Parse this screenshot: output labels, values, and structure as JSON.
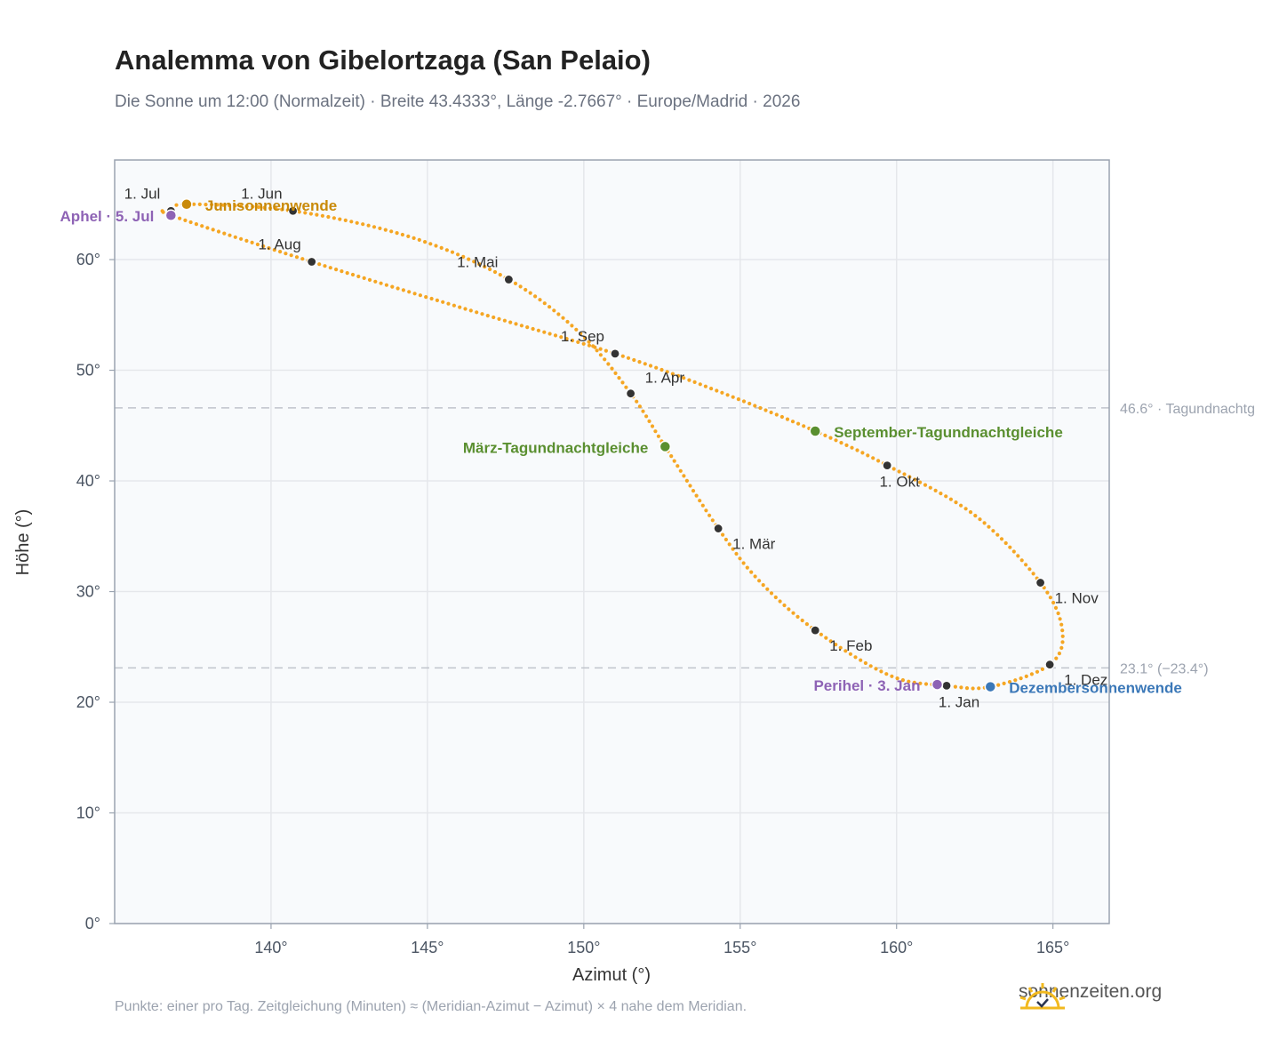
{
  "title": "Analemma von Gibelortzaga (San Pelaio)",
  "subtitle": "Die Sonne um 12:00 (Normalzeit) · Breite 43.4333°, Länge -2.7667° · Europe/Madrid · 2026",
  "footnote": "Punkte: einer pro Tag. Zeitgleichung (Minuten) ≈ (Meridian-Azimut − Azimut) × 4 nahe dem Meridian.",
  "brand": "sonnenzeiten.org",
  "chart_data": {
    "type": "scatter",
    "xlabel": "Azimut (°)",
    "ylabel": "Höhe (°)",
    "xlim": [
      135,
      166.8
    ],
    "ylim": [
      0,
      69
    ],
    "xticks": [
      140,
      145,
      150,
      155,
      160,
      165
    ],
    "yticks": [
      0,
      10,
      20,
      30,
      40,
      50,
      60
    ],
    "tick_suffix": "°",
    "grid": true,
    "colors": {
      "path": "#f5a623",
      "month": "#333333",
      "aphel": "#8e63b5",
      "perihel": "#8e63b5",
      "june": "#c98a09",
      "equinox": "#5a8f30",
      "december": "#3b78b8",
      "reference": "#c0c4cc"
    },
    "months": [
      {
        "label": "1. Jan",
        "az": 161.6,
        "alt": 21.5,
        "pos": "below"
      },
      {
        "label": "1. Feb",
        "az": 157.4,
        "alt": 26.5,
        "pos": "right"
      },
      {
        "label": "1. Mär",
        "az": 154.3,
        "alt": 35.7,
        "pos": "right"
      },
      {
        "label": "1. Apr",
        "az": 151.5,
        "alt": 47.9,
        "pos": "above"
      },
      {
        "label": "1. Mai",
        "az": 147.6,
        "alt": 58.2,
        "pos": "aboveleft"
      },
      {
        "label": "1. Jun",
        "az": 140.7,
        "alt": 64.4,
        "pos": "aboveleft"
      },
      {
        "label": "1. Jul",
        "az": 136.8,
        "alt": 64.4,
        "pos": "aboveleft"
      },
      {
        "label": "1. Aug",
        "az": 141.3,
        "alt": 59.8,
        "pos": "aboveleft"
      },
      {
        "label": "1. Sep",
        "az": 151.0,
        "alt": 51.5,
        "pos": "aboveleft"
      },
      {
        "label": "1. Okt",
        "az": 159.7,
        "alt": 41.4,
        "pos": "below"
      },
      {
        "label": "1. Nov",
        "az": 164.6,
        "alt": 30.8,
        "pos": "right"
      },
      {
        "label": "1. Dez",
        "az": 164.9,
        "alt": 23.4,
        "pos": "right"
      }
    ],
    "special_points": [
      {
        "label": "Aphel · 5. Jul",
        "az": 136.8,
        "alt": 64.0,
        "color": "#8e63b5",
        "side": "left"
      },
      {
        "label": "Junisonnenwende",
        "az": 137.3,
        "alt": 65.0,
        "color": "#c98a09",
        "side": "right"
      },
      {
        "label": "März-Tagundnachtgleiche",
        "az": 152.6,
        "alt": 43.1,
        "color": "#5a8f30",
        "side": "left"
      },
      {
        "label": "September-Tagundnachtgleiche",
        "az": 157.4,
        "alt": 44.5,
        "color": "#5a8f30",
        "side": "right"
      },
      {
        "label": "Perihel · 3. Jan",
        "az": 161.3,
        "alt": 21.6,
        "color": "#8e63b5",
        "side": "left"
      },
      {
        "label": "Dezembersonnenwende",
        "az": 163.0,
        "alt": 21.4,
        "color": "#3b78b8",
        "side": "right"
      }
    ],
    "reference_lines": [
      {
        "alt": 46.6,
        "label": "46.6° · Tagundnachtg"
      },
      {
        "alt": 23.1,
        "label": "23.1° (−23.4°)"
      }
    ],
    "path_anchors": [
      {
        "az": 163.0,
        "alt": 21.4
      },
      {
        "az": 161.6,
        "alt": 21.5
      },
      {
        "az": 159.8,
        "alt": 22.4
      },
      {
        "az": 157.4,
        "alt": 26.5
      },
      {
        "az": 155.6,
        "alt": 31.0
      },
      {
        "az": 154.3,
        "alt": 35.7
      },
      {
        "az": 152.6,
        "alt": 43.1
      },
      {
        "az": 151.5,
        "alt": 47.9
      },
      {
        "az": 149.9,
        "alt": 53.3
      },
      {
        "az": 147.6,
        "alt": 58.2
      },
      {
        "az": 144.5,
        "alt": 62.0
      },
      {
        "az": 140.7,
        "alt": 64.4
      },
      {
        "az": 137.3,
        "alt": 65.0
      },
      {
        "az": 136.8,
        "alt": 64.4
      },
      {
        "az": 136.8,
        "alt": 64.0
      },
      {
        "az": 141.3,
        "alt": 59.8
      },
      {
        "az": 146.5,
        "alt": 55.3
      },
      {
        "az": 151.0,
        "alt": 51.5
      },
      {
        "az": 154.3,
        "alt": 48.1
      },
      {
        "az": 157.4,
        "alt": 44.5
      },
      {
        "az": 159.7,
        "alt": 41.4
      },
      {
        "az": 162.5,
        "alt": 36.9
      },
      {
        "az": 164.6,
        "alt": 30.8
      },
      {
        "az": 165.3,
        "alt": 26.5
      },
      {
        "az": 164.9,
        "alt": 23.4
      },
      {
        "az": 163.0,
        "alt": 21.4
      }
    ]
  }
}
